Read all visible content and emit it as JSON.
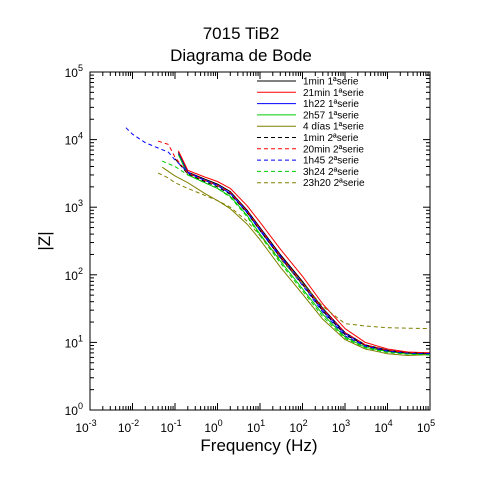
{
  "chart_data": {
    "type": "line",
    "title": "7015 TiB2",
    "subtitle": "Diagrama de Bode",
    "xlabel": "Frequency (Hz)",
    "ylabel": "|Z|",
    "xscale": "log",
    "yscale": "log",
    "xlim": [
      0.001,
      100000
    ],
    "ylim": [
      1,
      100000
    ],
    "x_ticks": [
      {
        "base": "10",
        "exp": "-3"
      },
      {
        "base": "10",
        "exp": "-2"
      },
      {
        "base": "10",
        "exp": "-1"
      },
      {
        "base": "10",
        "exp": "0"
      },
      {
        "base": "10",
        "exp": "1"
      },
      {
        "base": "10",
        "exp": "2"
      },
      {
        "base": "10",
        "exp": "3"
      },
      {
        "base": "10",
        "exp": "4"
      },
      {
        "base": "10",
        "exp": "5"
      }
    ],
    "y_ticks": [
      {
        "base": "10",
        "exp": "0"
      },
      {
        "base": "10",
        "exp": "1"
      },
      {
        "base": "10",
        "exp": "2"
      },
      {
        "base": "10",
        "exp": "3"
      },
      {
        "base": "10",
        "exp": "4"
      },
      {
        "base": "10",
        "exp": "5"
      }
    ],
    "grid": false,
    "legend_position": "top-right",
    "series": [
      {
        "name": "1min 1ªserie",
        "color": "#000000",
        "dash": "solid",
        "x": [
          0.12,
          0.2,
          0.5,
          1,
          2,
          5,
          10,
          30,
          100,
          300,
          1000,
          3000,
          10000,
          30000,
          100000
        ],
        "y": [
          6500,
          3300,
          2600,
          2200,
          1700,
          900,
          500,
          200,
          80,
          32,
          14,
          9.2,
          7.7,
          7.0,
          6.9
        ]
      },
      {
        "name": "21min 1ªserie",
        "color": "#ff0000",
        "dash": "solid",
        "x": [
          0.12,
          0.2,
          0.5,
          1,
          2,
          5,
          10,
          30,
          100,
          300,
          1000,
          3000,
          10000,
          30000,
          100000
        ],
        "y": [
          6800,
          3500,
          2800,
          2400,
          1900,
          1050,
          600,
          240,
          95,
          37,
          16,
          10,
          8.0,
          7.2,
          7.0
        ]
      },
      {
        "name": "1h22 1ªserie",
        "color": "#0000ff",
        "dash": "solid",
        "x": [
          0.12,
          0.2,
          0.5,
          1,
          2,
          5,
          10,
          30,
          100,
          300,
          1000,
          3000,
          10000,
          30000,
          100000
        ],
        "y": [
          6200,
          3200,
          2500,
          2100,
          1600,
          850,
          470,
          190,
          75,
          30,
          13.5,
          9,
          7.6,
          6.9,
          6.8
        ]
      },
      {
        "name": "2h57 1ªserie",
        "color": "#00cc00",
        "dash": "solid",
        "x": [
          0.12,
          0.2,
          0.5,
          1,
          2,
          5,
          10,
          30,
          100,
          300,
          1000,
          3000,
          10000,
          30000,
          100000
        ],
        "y": [
          6000,
          3000,
          2300,
          1900,
          1450,
          750,
          400,
          160,
          62,
          26,
          12,
          8.5,
          7.3,
          6.8,
          6.6
        ]
      },
      {
        "name": "4 días 1ªserie",
        "color": "#808000",
        "dash": "solid",
        "x": [
          0.05,
          0.1,
          0.2,
          0.5,
          1,
          2,
          5,
          10,
          30,
          100,
          300,
          1000,
          3000,
          10000,
          30000,
          100000
        ],
        "y": [
          3900,
          2900,
          2300,
          1600,
          1250,
          950,
          560,
          330,
          130,
          52,
          22,
          11,
          8,
          6.8,
          6.4,
          6.6
        ]
      },
      {
        "name": "1min 2ªserie",
        "color": "#000000",
        "dash": "dashed",
        "x": [
          0.1,
          0.2,
          0.5,
          1,
          2,
          5,
          10,
          30,
          100,
          300,
          1000,
          3000,
          10000,
          30000,
          100000
        ],
        "y": [
          5200,
          3100,
          2400,
          2000,
          1550,
          820,
          450,
          180,
          72,
          29,
          13,
          9,
          7.5,
          7.0,
          6.9
        ]
      },
      {
        "name": "20min 2ªserie",
        "color": "#ff0000",
        "dash": "dashed",
        "x": [
          0.04,
          0.07,
          0.1,
          0.2,
          0.5,
          1,
          2,
          5,
          10,
          30,
          100,
          300,
          1000,
          3000,
          10000,
          30000,
          100000
        ],
        "y": [
          9500,
          8500,
          5500,
          3200,
          2500,
          2100,
          1650,
          870,
          480,
          190,
          76,
          31,
          14,
          9.2,
          7.6,
          7.1,
          7.0
        ]
      },
      {
        "name": "1h45 2ªserie",
        "color": "#0000ff",
        "dash": "dashed",
        "x": [
          0.007,
          0.01,
          0.02,
          0.04,
          0.07,
          0.1,
          0.2,
          0.5,
          1,
          2,
          5,
          10,
          30,
          100,
          300,
          1000,
          3000,
          10000,
          30000,
          100000
        ],
        "y": [
          15000,
          12000,
          9000,
          7500,
          6500,
          5000,
          3300,
          2500,
          2100,
          1600,
          830,
          450,
          180,
          70,
          28,
          12.5,
          8.8,
          7.4,
          6.9,
          6.8
        ]
      },
      {
        "name": "3h24 2ªserie",
        "color": "#00cc00",
        "dash": "dashed",
        "x": [
          0.05,
          0.1,
          0.2,
          0.5,
          1,
          2,
          5,
          10,
          30,
          100,
          300,
          1000,
          3000,
          10000,
          30000,
          100000
        ],
        "y": [
          4800,
          4000,
          3000,
          2300,
          1900,
          1400,
          720,
          380,
          150,
          58,
          24,
          11.5,
          8.3,
          7.1,
          6.7,
          6.5
        ]
      },
      {
        "name": "23h20 2ªserie",
        "color": "#808000",
        "dash": "dashed",
        "x": [
          0.04,
          0.07,
          0.1,
          0.2,
          0.5,
          1,
          2,
          5,
          10,
          30,
          100,
          300,
          1000,
          3000,
          10000,
          30000,
          100000
        ],
        "y": [
          3200,
          2700,
          2300,
          1900,
          1500,
          1250,
          1000,
          620,
          380,
          170,
          75,
          34,
          19,
          17.5,
          16.5,
          16.2,
          16.0
        ]
      }
    ]
  }
}
